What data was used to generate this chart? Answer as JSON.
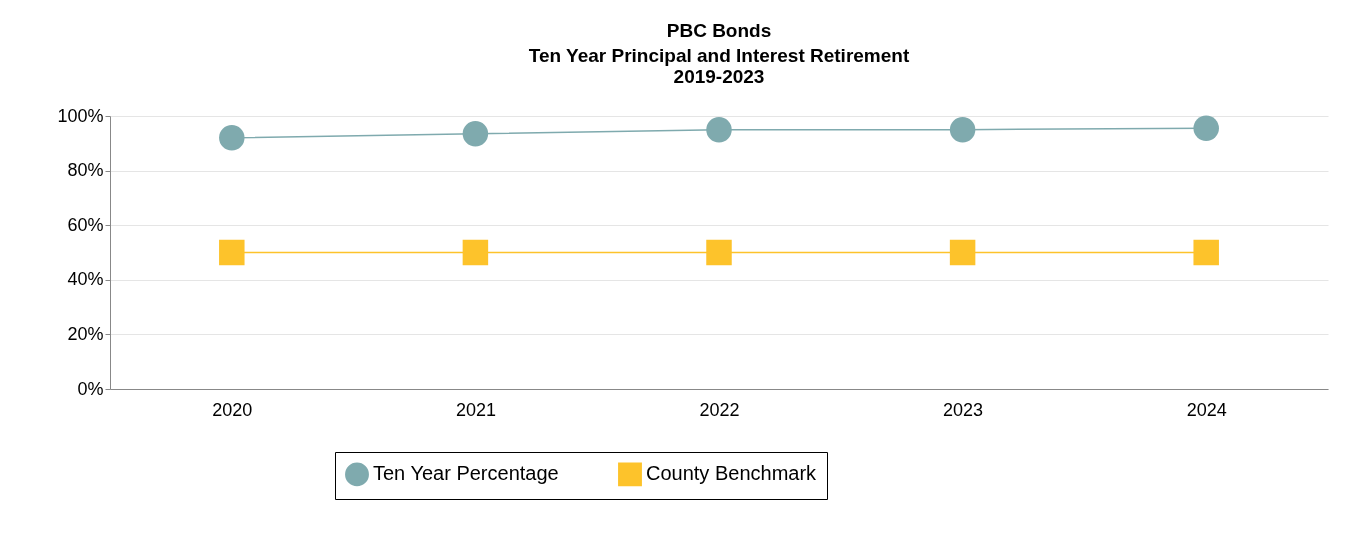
{
  "chart_data": {
    "type": "line",
    "title": "PBC Bonds",
    "subtitle": "Ten Year Principal and Interest Retirement\n2019-2023",
    "categories": [
      "2020",
      "2021",
      "2022",
      "2023",
      "2024"
    ],
    "series": [
      {
        "name": "Ten Year Percentage",
        "color": "#7faaae",
        "marker": "circle",
        "values": [
          92,
          93.5,
          95,
          95,
          95.5
        ]
      },
      {
        "name": "County Benchmark",
        "color": "#fdc32b",
        "marker": "square",
        "values": [
          50,
          50,
          50,
          50,
          50
        ]
      }
    ],
    "ylim": [
      0,
      100
    ],
    "yticks": [
      {
        "value": 0,
        "label": "0%"
      },
      {
        "value": 20,
        "label": "20%"
      },
      {
        "value": 40,
        "label": "40%"
      },
      {
        "value": 60,
        "label": "60%"
      },
      {
        "value": 80,
        "label": "80%"
      },
      {
        "value": 100,
        "label": "100%"
      }
    ],
    "grid": "y",
    "legend": "bottom",
    "line_style": "solid"
  }
}
